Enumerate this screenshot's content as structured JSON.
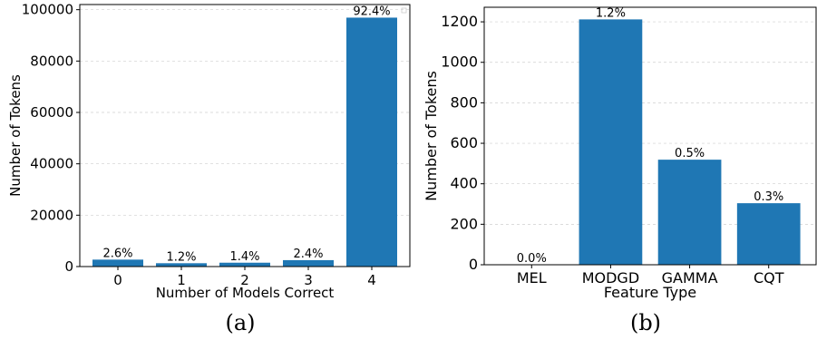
{
  "colors": {
    "bar": "#1f77b4",
    "grid": "#b0b0b0",
    "axis": "#000000"
  },
  "chart_data": [
    {
      "id": "a",
      "type": "bar",
      "panel_label": "(a)",
      "xlabel": "Number of Models Correct",
      "ylabel": "Number of Tokens",
      "categories": [
        "0",
        "1",
        "2",
        "3",
        "4"
      ],
      "values": [
        2700,
        1300,
        1500,
        2500,
        96900
      ],
      "data_labels": [
        "2.6%",
        "1.2%",
        "1.4%",
        "2.4%",
        "92.4%"
      ],
      "ylim": [
        0,
        102000
      ],
      "yticks": [
        0,
        20000,
        40000,
        60000,
        80000,
        100000
      ],
      "ytick_labels": [
        "0",
        "20000",
        "40000",
        "60000",
        "80000",
        "100000"
      ],
      "grid": "y-dashed"
    },
    {
      "id": "b",
      "type": "bar",
      "panel_label": "(b)",
      "xlabel": "Feature Type",
      "ylabel": "Number of Tokens",
      "categories": [
        "MEL",
        "MODGD",
        "GAMMA",
        "CQT"
      ],
      "values": [
        0,
        1212,
        519,
        304
      ],
      "data_labels": [
        "0.0%",
        "1.2%",
        "0.5%",
        "0.3%"
      ],
      "ylim": [
        0,
        1272
      ],
      "yticks": [
        0,
        200,
        400,
        600,
        800,
        1000,
        1200
      ],
      "ytick_labels": [
        "0",
        "200",
        "400",
        "600",
        "800",
        "1000",
        "1200"
      ],
      "grid": "y-dashed"
    }
  ]
}
